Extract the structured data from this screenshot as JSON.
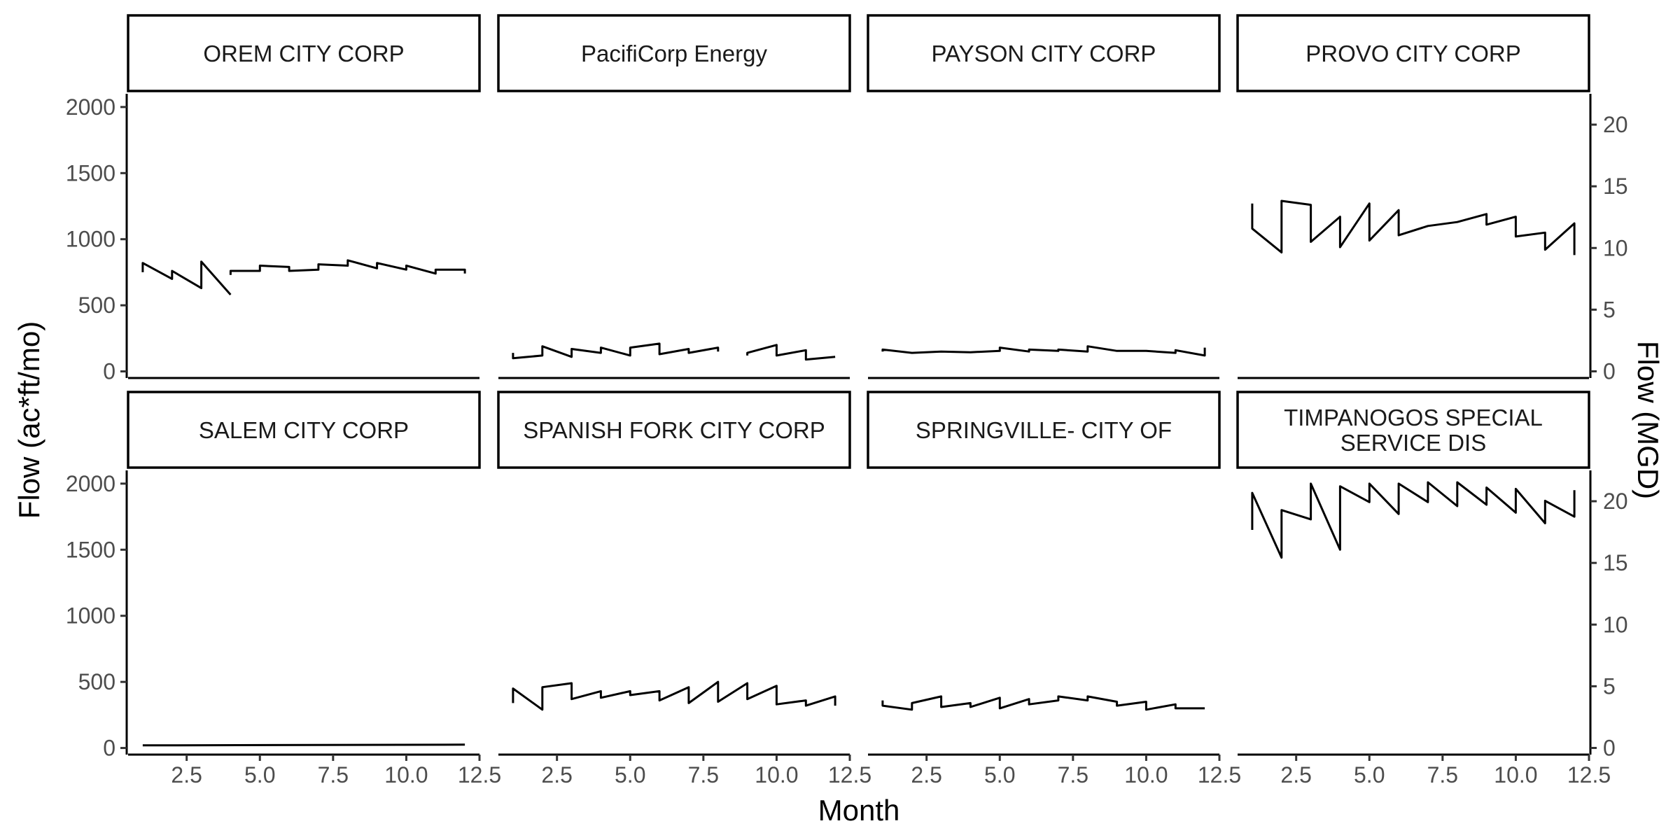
{
  "chart_data": {
    "type": "line",
    "layout": "faceted 2 rows x 4 columns",
    "xlabel": "Month",
    "ylabel_left": "Flow (ac*ft/mo)",
    "ylabel_right": "Flow (MGD)",
    "xlim": [
      0.5,
      12.5
    ],
    "ylim": [
      -50,
      2100
    ],
    "ylim_right": [
      -0.54,
      22.5
    ],
    "x_ticks": [
      2.5,
      5.0,
      7.5,
      10.0,
      12.5
    ],
    "x_tick_labels": [
      "2.5",
      "5.0",
      "7.5",
      "10.0",
      "12.5"
    ],
    "y_ticks": [
      0,
      500,
      1000,
      1500,
      2000
    ],
    "y_tick_labels": [
      "0",
      "500",
      "1000",
      "1500",
      "2000"
    ],
    "y_ticks_right": [
      0,
      5,
      10,
      15,
      20
    ],
    "y_tick_labels_right": [
      "0",
      "5",
      "10",
      "15",
      "20"
    ],
    "grid": false,
    "line_color": "#000000",
    "panels": [
      {
        "title": "OREM CITY CORP",
        "series": [
          {
            "x": [
              1,
              1,
              2,
              2,
              3,
              3,
              4
            ],
            "y": [
              750,
              820,
              700,
              760,
              630,
              830,
              580
            ]
          },
          {
            "x": [
              4,
              4,
              5,
              5,
              6,
              6,
              7,
              7,
              8,
              8,
              9,
              9,
              10,
              10,
              11,
              11,
              12,
              12
            ],
            "y": [
              730,
              760,
              760,
              800,
              790,
              760,
              770,
              810,
              800,
              840,
              780,
              820,
              770,
              800,
              740,
              770,
              770,
              740
            ]
          }
        ]
      },
      {
        "title": "PacifiCorp Energy",
        "series": [
          {
            "x": [
              1,
              1,
              2,
              2,
              3,
              3,
              4,
              4,
              5,
              5,
              6,
              6,
              7,
              7,
              8,
              8
            ],
            "y": [
              140,
              100,
              120,
              190,
              110,
              170,
              140,
              180,
              120,
              180,
              210,
              130,
              170,
              140,
              180,
              150
            ]
          },
          {
            "x": [
              9,
              9,
              10,
              10,
              11,
              11,
              12
            ],
            "y": [
              120,
              140,
              200,
              120,
              160,
              90,
              110
            ]
          }
        ]
      },
      {
        "title": "PAYSON CITY CORP",
        "series": [
          {
            "x": [
              1,
              1,
              2,
              3,
              4,
              5,
              5,
              6,
              6,
              7,
              7,
              8,
              8,
              9,
              10,
              11,
              11,
              12,
              12
            ],
            "y": [
              150,
              165,
              140,
              150,
              145,
              155,
              180,
              150,
              165,
              155,
              165,
              150,
              190,
              155,
              155,
              140,
              160,
              120,
              180
            ]
          }
        ]
      },
      {
        "title": "PROVO CITY CORP",
        "series": [
          {
            "x": [
              1,
              1,
              2,
              2,
              3,
              3,
              4,
              4,
              5,
              5,
              6,
              6,
              7,
              8,
              9,
              9,
              10,
              10,
              11,
              11,
              12,
              12
            ],
            "y": [
              1270,
              1080,
              900,
              1290,
              1260,
              980,
              1170,
              940,
              1270,
              990,
              1220,
              1030,
              1100,
              1130,
              1190,
              1110,
              1170,
              1020,
              1050,
              920,
              1120,
              880
            ]
          }
        ]
      },
      {
        "title": "SALEM CITY CORP",
        "series": [
          {
            "x": [
              1,
              12
            ],
            "y": [
              20,
              25
            ]
          }
        ]
      },
      {
        "title": "SPANISH FORK CITY CORP",
        "series": [
          {
            "x": [
              1,
              1,
              2,
              2,
              3,
              3,
              4,
              4,
              5,
              5,
              6,
              6,
              7,
              7,
              8,
              8,
              9,
              9,
              10,
              10,
              11,
              11,
              12,
              12
            ],
            "y": [
              340,
              450,
              290,
              460,
              490,
              370,
              430,
              380,
              430,
              400,
              430,
              360,
              460,
              340,
              500,
              350,
              490,
              370,
              470,
              330,
              360,
              320,
              390,
              320
            ]
          }
        ]
      },
      {
        "title": "SPRINGVILLE- CITY OF",
        "series": [
          {
            "x": [
              1,
              1,
              2,
              2,
              3,
              3,
              4,
              4,
              5,
              5,
              6,
              6,
              7,
              7,
              8,
              8,
              9,
              9,
              10,
              10,
              11,
              11,
              12
            ],
            "y": [
              360,
              320,
              290,
              340,
              390,
              310,
              340,
              310,
              380,
              300,
              370,
              330,
              360,
              390,
              360,
              390,
              350,
              320,
              350,
              290,
              330,
              300,
              300
            ]
          }
        ]
      },
      {
        "title": "TIMPANOGOS SPECIAL SERVICE DIS",
        "series": [
          {
            "x": [
              1,
              1,
              2,
              2,
              3,
              3,
              4,
              4,
              5,
              5,
              6,
              6,
              7,
              7,
              8,
              8,
              9,
              9,
              10,
              10,
              11,
              11,
              12,
              12
            ],
            "y": [
              1650,
              1930,
              1440,
              1800,
              1730,
              2000,
              1500,
              1980,
              1860,
              2000,
              1770,
              2000,
              1860,
              2010,
              1830,
              2010,
              1840,
              1970,
              1780,
              1960,
              1700,
              1870,
              1750,
              1950
            ]
          }
        ]
      }
    ]
  }
}
